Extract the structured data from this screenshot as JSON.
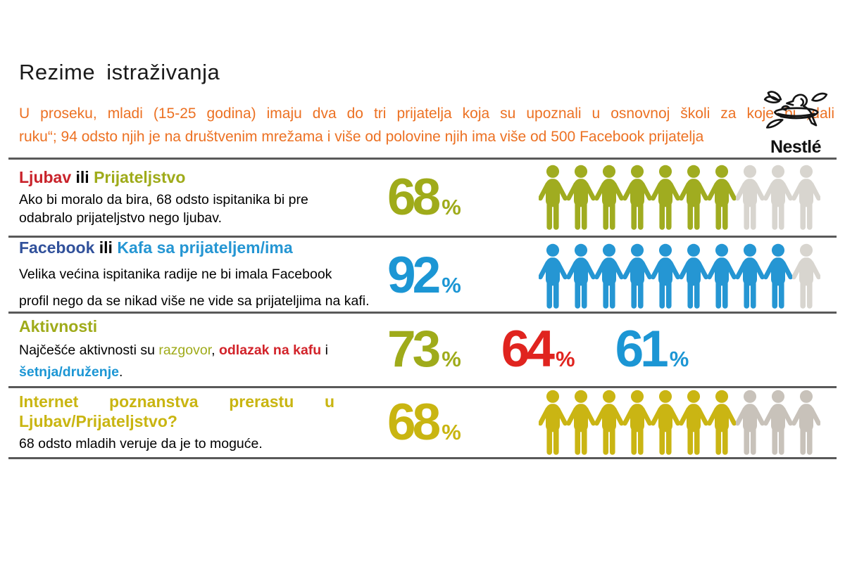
{
  "header": {
    "title": "Rezime istraživanja"
  },
  "logo": {
    "brand": "Nestlé"
  },
  "intro": {
    "color": "#EC7123",
    "line1": "U proseku, mladi (15-25 godina) imaju dva do tri prijatelja koja su upoznali u osnovnoj školi za koje bi „dali",
    "line2": "ruku“; 94 odsto njih je na društvenim mrežama i više od polovine njih ima više od 500 Facebook prijatelja"
  },
  "percent_symbol": "%",
  "colors": {
    "olive": "#9FAB1A",
    "red": "#D2232A",
    "bright_red": "#E0241F",
    "navy": "#31519B",
    "azure": "#1C96D4",
    "yellow": "#C9B511",
    "orange": "#EC7123",
    "divider": "#595959",
    "gray_icon": "#D8D5CF",
    "gray_icon_warm": "#C8C2BA"
  },
  "rows": [
    {
      "heading_parts": [
        {
          "text": "Ljubav",
          "color": "#C9232B"
        },
        {
          "text": " ili ",
          "color": "#000000"
        },
        {
          "text": "Prijateljstvo",
          "color": "#9FAB1A"
        }
      ],
      "body": {
        "line1": "Ako bi moralo da bira, 68 odsto ispitanika bi pre",
        "line2": "odabralo prijateljstvo nego ljubav."
      },
      "stat": {
        "value": "68",
        "color": "#9FAB1A"
      },
      "people": {
        "total": 10,
        "filled": 7,
        "filled_color": "#A0AC20",
        "empty_color": "#D8D5CF"
      }
    },
    {
      "heading_parts": [
        {
          "text": "Facebook",
          "color": "#31519B"
        },
        {
          "text": " ili ",
          "color": "#000000"
        },
        {
          "text": "Kafa sa prijateljem/ima",
          "color": "#2596D3"
        }
      ],
      "body": {
        "line1": "Velika većina ispitanika radije ne bi imala Facebook",
        "line2": "profil nego da se nikad više ne vide sa prijateljima na kafi."
      },
      "stat": {
        "value": "92",
        "color": "#1C96D4"
      },
      "people": {
        "total": 10,
        "filled": 9,
        "filled_color": "#2596D3",
        "empty_color": "#D8D5CF"
      }
    },
    {
      "heading_parts": [
        {
          "text": "Aktivnosti",
          "color": "#9FAB1A"
        }
      ],
      "body": {
        "seg1": "Najčešće aktivnosti su ",
        "seg2": "razgovor",
        "seg2_color": "#9FAB1A",
        "seg3": ", ",
        "seg4": "odlazak na kafu",
        "seg4_color": "#D2232A",
        "seg5": " i",
        "seg6": "šetnja/druženje",
        "seg6_color": "#1C96D4",
        "seg7": "."
      },
      "stats": [
        {
          "value": "73",
          "color": "#9FAB1A"
        },
        {
          "value": "64",
          "color": "#E0241F"
        },
        {
          "value": "61",
          "color": "#1C96D4"
        }
      ]
    },
    {
      "heading_parts": [
        {
          "text": "Internet poznanstva prerastu u Ljubav/Prijateljstvo?",
          "color": "#C9B511"
        }
      ],
      "body": {
        "line1": "68 odsto mladih veruje da je to moguće."
      },
      "stat": {
        "value": "68",
        "color": "#C9B511"
      },
      "people": {
        "total": 10,
        "filled": 7,
        "filled_color": "#CAB513",
        "empty_color": "#C8C2BA"
      }
    }
  ]
}
